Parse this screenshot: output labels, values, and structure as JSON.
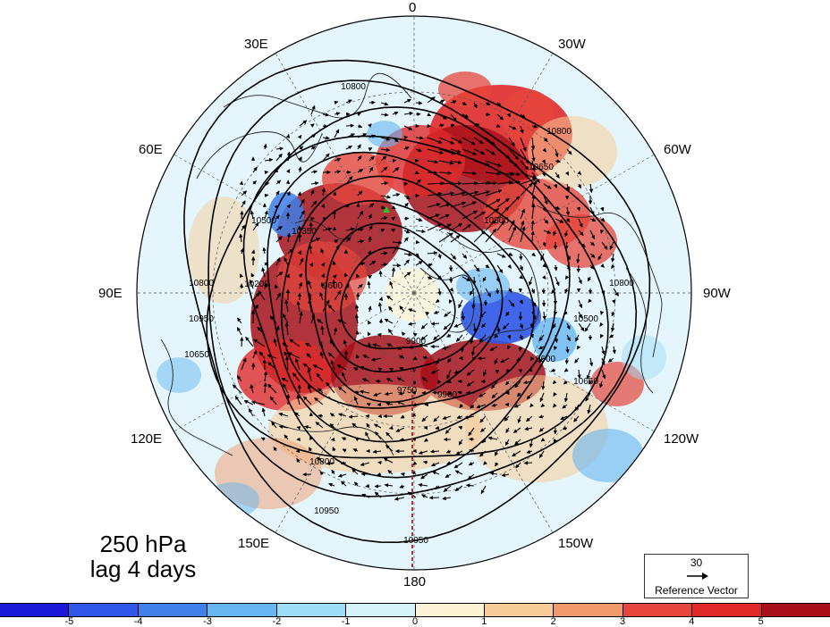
{
  "title": {
    "line1": "250 hPa",
    "line2": "lag 4 days"
  },
  "longitude_labels": [
    {
      "id": "lon-0",
      "text": "0"
    },
    {
      "id": "lon-30w",
      "text": "30W"
    },
    {
      "id": "lon-60w",
      "text": "60W"
    },
    {
      "id": "lon-90w",
      "text": "90W"
    },
    {
      "id": "lon-120w",
      "text": "120W"
    },
    {
      "id": "lon-150w",
      "text": "150W"
    },
    {
      "id": "lon-180",
      "text": "180"
    },
    {
      "id": "lon-150e",
      "text": "150E"
    },
    {
      "id": "lon-120e",
      "text": "120E"
    },
    {
      "id": "lon-90e",
      "text": "90E"
    },
    {
      "id": "lon-60e",
      "text": "60E"
    },
    {
      "id": "lon-30e",
      "text": "30E"
    }
  ],
  "contour_labels": [
    "10800",
    "10800",
    "10800",
    "10800",
    "10950",
    "10950",
    "10950",
    "10650",
    "10650",
    "10500",
    "10500",
    "10350",
    "10200",
    "9900",
    "9600",
    "9600",
    "9750",
    "9900",
    "10650",
    "10500",
    "10800"
  ],
  "reference_vector": {
    "value": "30",
    "label": "Reference Vector"
  },
  "colorbar": {
    "ticks": [
      "-5",
      "-4",
      "-3",
      "-2",
      "-1",
      "0",
      "1",
      "2",
      "3",
      "4",
      "5"
    ],
    "colors": [
      "#1a1ad8",
      "#2f57e8",
      "#3f7fea",
      "#67b6f2",
      "#9fdcf6",
      "#d4f4fa",
      "#fdf4d6",
      "#f8cc98",
      "#f09a6c",
      "#e6463c",
      "#e02a2a",
      "#a8101a"
    ]
  },
  "marker": {
    "color": "#22cc22"
  }
}
